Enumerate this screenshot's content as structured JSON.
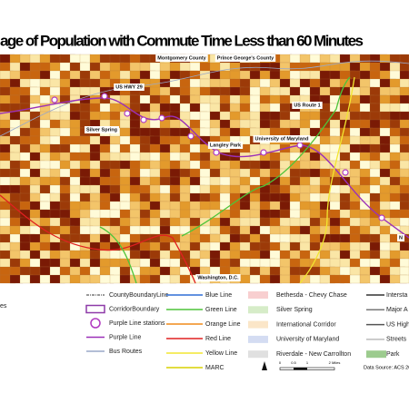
{
  "title": "age of Population with Commute Time Less than 60 Minutes",
  "map_labels": [
    "Montgomery County",
    "Prince George's County",
    "US HWY 29",
    "US Route 1",
    "Silver Spring",
    "Langley Park",
    "University of Maryland",
    "Washington, D.C.",
    "N"
  ],
  "legend": {
    "left_cut": "es",
    "col1": [
      {
        "label": "CountyBoundaryLine",
        "color": "#333333"
      },
      {
        "label": "CorridorBoundary",
        "color": "#8e3aa8"
      },
      {
        "label": "Purple Line stations",
        "color": "#b03ac0"
      },
      {
        "label": "Purple Line",
        "color": "#9b30b8"
      },
      {
        "label": "Bus Routes",
        "color": "#9aa8c8"
      }
    ],
    "col2": [
      {
        "label": "Blue Line",
        "color": "#2f6fd6"
      },
      {
        "label": "Green Line",
        "color": "#4ec43a"
      },
      {
        "label": "Orange Line",
        "color": "#f08a1a"
      },
      {
        "label": "Red Line",
        "color": "#e02020"
      },
      {
        "label": "Yellow Line",
        "color": "#f2e630"
      },
      {
        "label": "MARC",
        "color": "#d8d000"
      }
    ],
    "col3": [
      {
        "label": "Bethesda - Chevy Chase",
        "color": "#f8cfd0"
      },
      {
        "label": "Silver Spring",
        "color": "#d6ecc8"
      },
      {
        "label": "International Corridor",
        "color": "#fbe6c8"
      },
      {
        "label": "University of Maryland",
        "color": "#d4dcf2"
      },
      {
        "label": "Riverdale - New Carrollton",
        "color": "#e0e0e0"
      }
    ],
    "col4": [
      {
        "label": "Intersta",
        "color": "#333333"
      },
      {
        "label": "Major A",
        "color": "#777777"
      },
      {
        "label": "US High",
        "color": "#555555"
      },
      {
        "label": "Streets",
        "color": "#bbbbbb"
      },
      {
        "label": "Park",
        "color": "#9ccb8e"
      }
    ]
  },
  "scale": [
    "0",
    "0.5",
    "1",
    "2 Miles"
  ],
  "source": "Data Source: ACS 200"
}
